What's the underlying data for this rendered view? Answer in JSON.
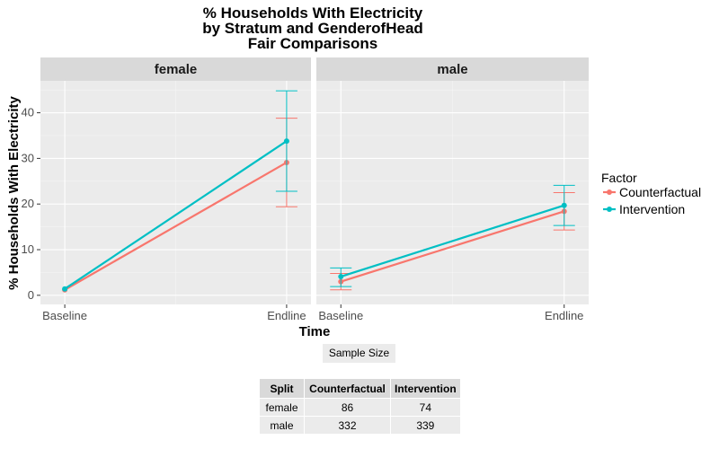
{
  "chart_data": {
    "type": "line",
    "title": [
      "% Households With Electricity",
      "by Stratum and GenderofHead",
      "Fair Comparisons"
    ],
    "xlabel": "Time",
    "ylabel": "% Households With Electricity",
    "categories": [
      "Baseline",
      "Endline"
    ],
    "ylim": [
      -2,
      47
    ],
    "yticks": [
      0,
      10,
      20,
      30,
      40
    ],
    "grid": true,
    "legend": {
      "title": "Factor",
      "position": "right",
      "entries": [
        "Counterfactual",
        "Intervention"
      ]
    },
    "colors": {
      "Counterfactual": "#f8766d",
      "Intervention": "#00bfc4"
    },
    "panels": [
      {
        "label": "female",
        "series": [
          {
            "name": "Counterfactual",
            "values": [
              1.2,
              29.1
            ],
            "lower": [
              1.2,
              19.4
            ],
            "upper": [
              1.2,
              38.8
            ]
          },
          {
            "name": "Intervention",
            "values": [
              1.4,
              33.8
            ],
            "lower": [
              1.4,
              22.8
            ],
            "upper": [
              1.4,
              44.8
            ]
          }
        ]
      },
      {
        "label": "male",
        "series": [
          {
            "name": "Counterfactual",
            "values": [
              3.0,
              18.4
            ],
            "lower": [
              1.2,
              14.3
            ],
            "upper": [
              4.8,
              22.5
            ]
          },
          {
            "name": "Intervention",
            "values": [
              4.1,
              19.7
            ],
            "lower": [
              1.9,
              15.3
            ],
            "upper": [
              6.0,
              24.1
            ]
          }
        ]
      }
    ]
  },
  "sample_size": {
    "label": "Sample Size",
    "headers": [
      "Split",
      "Counterfactual",
      "Intervention"
    ],
    "rows": [
      [
        "female",
        "86",
        "74"
      ],
      [
        "male",
        "332",
        "339"
      ]
    ]
  }
}
